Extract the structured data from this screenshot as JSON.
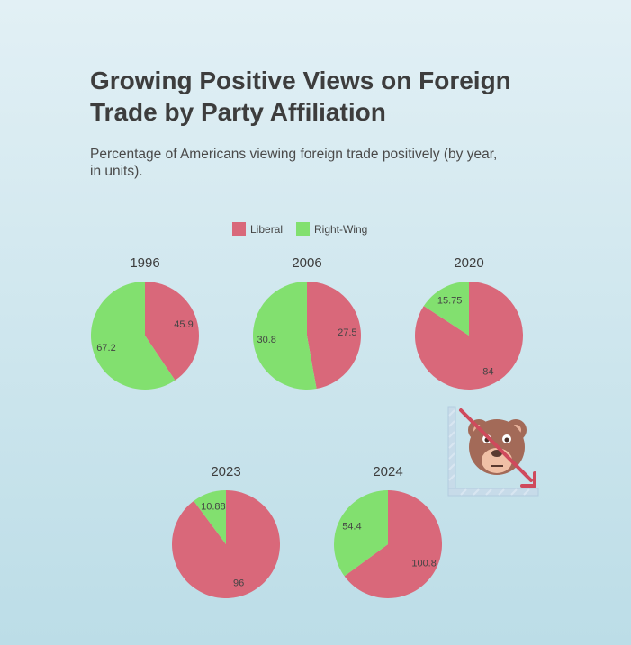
{
  "chart_title": "Growing Positive Views on Foreign Trade by Party Affiliation",
  "chart_subtitle": "Percentage of Americans viewing foreign trade positively (by year, in units).",
  "colors": {
    "liberal": "#d9687a",
    "right_wing": "#82e06f"
  },
  "chart_data": {
    "type": "pie",
    "title": "Growing Positive Views on Foreign Trade by Party Affiliation",
    "subtitle": "Percentage of Americans viewing foreign trade positively (by year, in units).",
    "legend": [
      "Liberal",
      "Right-Wing"
    ],
    "legend_position": "top-center",
    "pies": [
      {
        "label": "1996",
        "values": [
          45.9,
          67.2
        ],
        "value_labels": [
          "45.9",
          "67.2"
        ]
      },
      {
        "label": "2006",
        "values": [
          27.5,
          30.8
        ],
        "value_labels": [
          "27.5",
          "30.8"
        ]
      },
      {
        "label": "2020",
        "values": [
          84,
          15.75
        ],
        "value_labels": [
          "84",
          "15.75"
        ]
      },
      {
        "label": "2023",
        "values": [
          96,
          10.88
        ],
        "value_labels": [
          "96",
          "10.88"
        ]
      },
      {
        "label": "2024",
        "values": [
          100.8,
          54.4
        ],
        "value_labels": [
          "100.8",
          "54.4"
        ]
      }
    ]
  },
  "decoration": {
    "icon": "bear-market-icon"
  }
}
